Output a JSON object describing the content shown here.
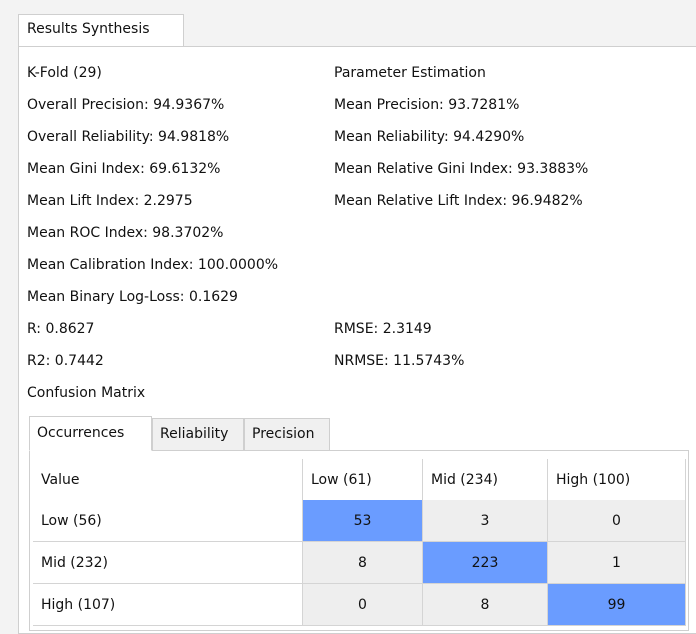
{
  "tabs": [
    "Results Synthesis"
  ],
  "rows": [
    {
      "left": "K-Fold (29)",
      "right": "Parameter Estimation"
    },
    {
      "left": "Overall Precision: 94.9367%",
      "right": "Mean Precision: 93.7281%"
    },
    {
      "left": "Overall Reliability: 94.9818%",
      "right": "Mean Reliability: 94.4290%"
    },
    {
      "left": "Mean Gini Index: 69.6132%",
      "right": "Mean Relative Gini Index: 93.3883%"
    },
    {
      "left": "Mean Lift Index: 2.2975",
      "right": "Mean Relative Lift Index: 96.9482%"
    },
    {
      "left": "Mean ROC Index: 98.3702%"
    },
    {
      "left": "Mean Calibration Index: 100.0000%"
    },
    {
      "left": "Mean Binary Log-Loss: 0.1629"
    },
    {
      "left": "R: 0.8627",
      "right": "RMSE: 2.3149"
    },
    {
      "left": "R2: 0.7442",
      "right": "NRMSE: 11.5743%"
    },
    {
      "left": "Confusion Matrix"
    }
  ],
  "matrix": {
    "tabs": [
      "Occurrences",
      "Reliability",
      "Precision"
    ],
    "header": [
      "Value",
      "Low (61)",
      "Mid (234)",
      "High (100)"
    ],
    "rows": [
      [
        "Low (56)",
        "53",
        "3",
        "0"
      ],
      [
        "Mid (232)",
        "8",
        "223",
        "1"
      ],
      [
        "High (107)",
        "0",
        "8",
        "99"
      ]
    ]
  }
}
